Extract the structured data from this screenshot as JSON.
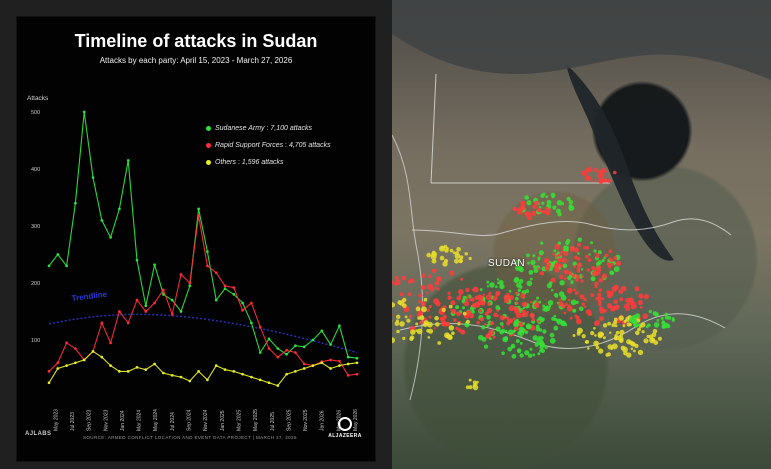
{
  "title": "Timeline of attacks in Sudan",
  "subtitle": "Attacks by each party: April 15, 2023 - March 27, 2026",
  "legend": {
    "items": [
      {
        "name": "Sudanese Army",
        "count": "7,100 attacks",
        "color": "#2ee33f"
      },
      {
        "name": "Rapid Support Forces",
        "count": "4,705 attacks",
        "color": "#ff2d3a"
      },
      {
        "name": "Others",
        "count": "1,596 attacks",
        "color": "#e8ef28"
      }
    ]
  },
  "footer": {
    "logo": "AJLABS",
    "source": "SOURCE: ARMED CONFLICT LOCATION AND EVENT DATA PROJECT | MARCH 27, 2026",
    "brand": "ALJAZEERA"
  },
  "map": {
    "label": "SUDAN"
  },
  "chart_data": {
    "type": "line",
    "title": "Timeline of attacks in Sudan",
    "subtitle": "Attacks by each party: April 15, 2023 - March 27, 2026",
    "ylabel": "Attacks",
    "ylim": [
      0,
      500
    ],
    "yticks": [
      100,
      200,
      300,
      400,
      500
    ],
    "tick_labels": [
      "May 2023",
      "Jul 2023",
      "Sep 2023",
      "Nov 2023",
      "Jan 2024",
      "Mar 2024",
      "May 2024",
      "Jul 2024",
      "Sep 2024",
      "Nov 2024",
      "Jan 2025",
      "Mar 2025",
      "May 2025",
      "Jul 2025",
      "Sep 2025",
      "Nov 2025",
      "Jan 2026",
      "Mar 2026",
      "May 2026"
    ],
    "x_dates": [
      "2023-04",
      "2023-05",
      "2023-06",
      "2023-07",
      "2023-08",
      "2023-09",
      "2023-10",
      "2023-11",
      "2023-12",
      "2024-01",
      "2024-02",
      "2024-03",
      "2024-04",
      "2024-05",
      "2024-06",
      "2024-07",
      "2024-08",
      "2024-09",
      "2024-10",
      "2024-11",
      "2024-12",
      "2025-01",
      "2025-02",
      "2025-03",
      "2025-04",
      "2025-05",
      "2025-06",
      "2025-07",
      "2025-08",
      "2025-09",
      "2025-10",
      "2025-11",
      "2025-12",
      "2026-01",
      "2026-02",
      "2026-03"
    ],
    "series": [
      {
        "name": "Sudanese Army",
        "color": "#2ee33f",
        "values": [
          230,
          250,
          230,
          340,
          500,
          385,
          310,
          280,
          330,
          415,
          240,
          160,
          232,
          180,
          170,
          150,
          195,
          330,
          255,
          170,
          190,
          180,
          165,
          130,
          78,
          102,
          85,
          75,
          90,
          88,
          100,
          116,
          92,
          125,
          70,
          68
        ]
      },
      {
        "name": "Rapid Support Forces",
        "color": "#ff2d3a",
        "values": [
          45,
          60,
          95,
          85,
          65,
          80,
          130,
          95,
          150,
          130,
          170,
          150,
          165,
          188,
          145,
          215,
          200,
          318,
          230,
          218,
          195,
          192,
          152,
          165,
          123,
          85,
          70,
          82,
          78,
          58,
          55,
          62,
          65,
          63,
          38,
          40
        ]
      },
      {
        "name": "Others",
        "color": "#e8ef28",
        "values": [
          25,
          50,
          55,
          60,
          65,
          80,
          70,
          55,
          45,
          45,
          52,
          48,
          58,
          42,
          38,
          35,
          28,
          45,
          30,
          55,
          48,
          45,
          40,
          35,
          30,
          25,
          20,
          40,
          45,
          50,
          55,
          60,
          50,
          55,
          58,
          60
        ]
      }
    ],
    "trendline": {
      "label": "Trendline",
      "color": "#2c39d8"
    },
    "grid": false
  }
}
